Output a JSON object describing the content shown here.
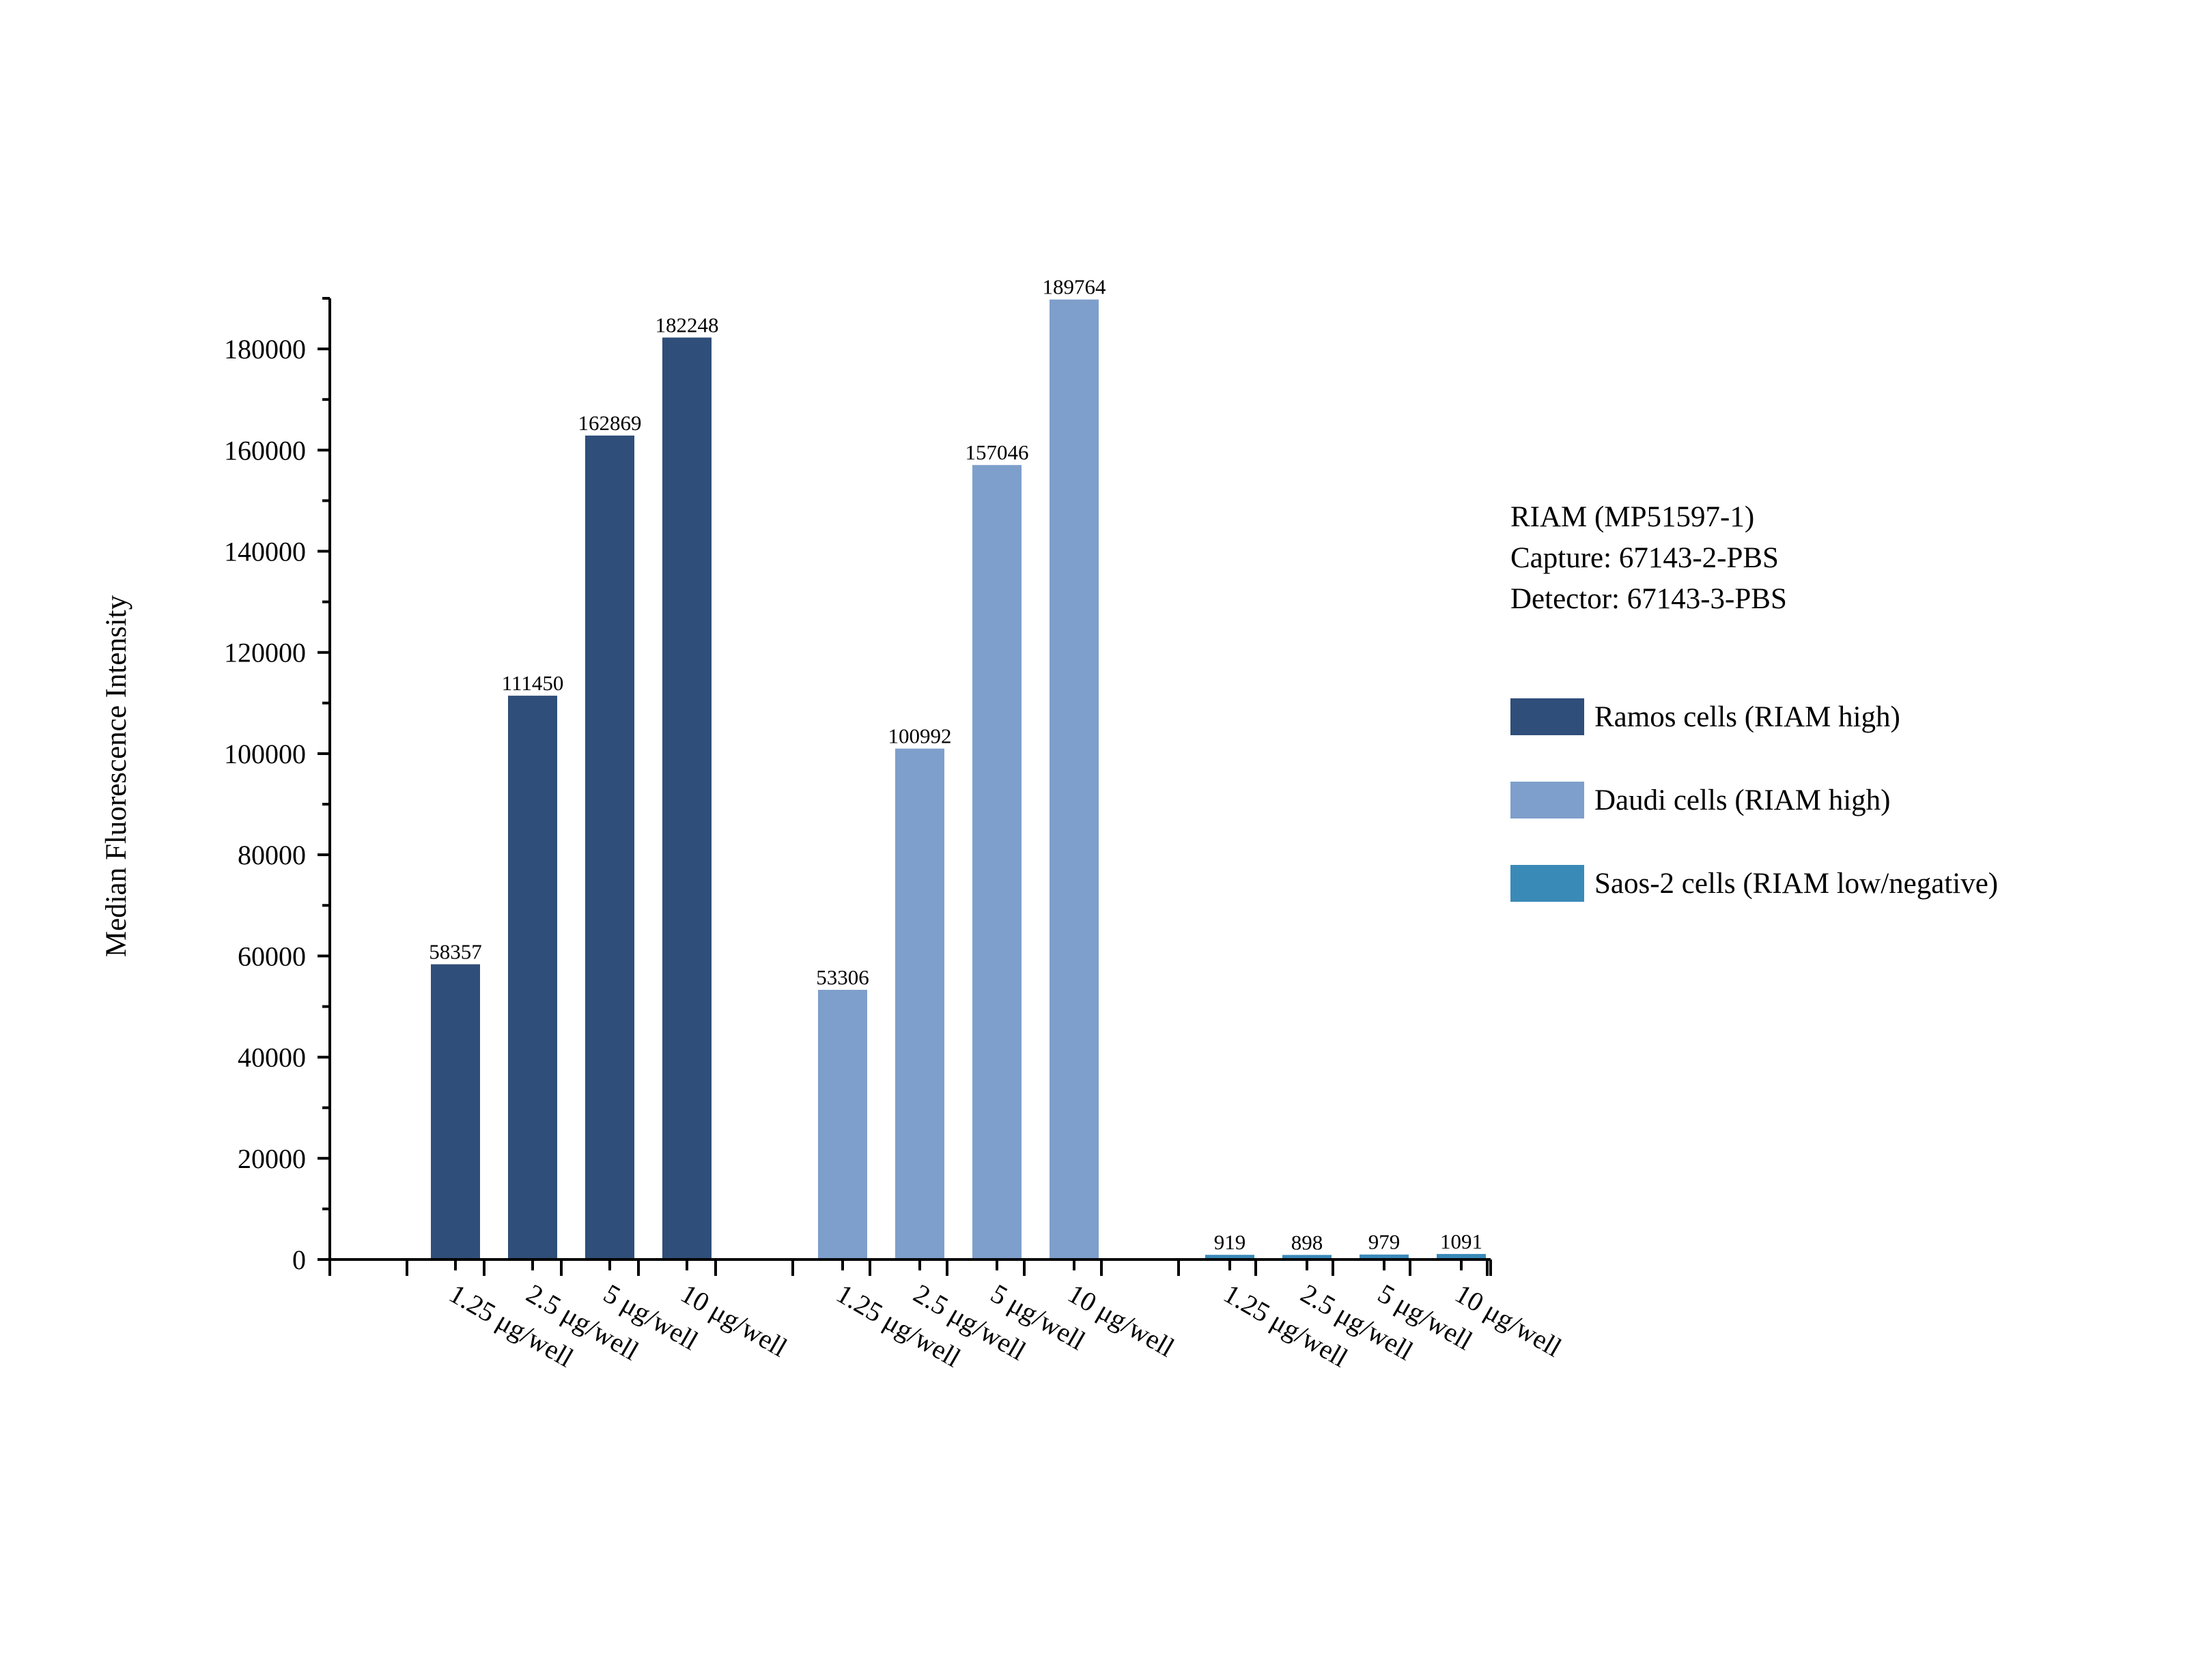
{
  "chart_data": {
    "type": "bar",
    "ylabel": "Median Fluorescence Intensity",
    "xlabel": "",
    "ylim": [
      0,
      190000
    ],
    "yticks": [
      0,
      20000,
      40000,
      60000,
      80000,
      100000,
      120000,
      140000,
      160000,
      180000
    ],
    "categories": [
      "1.25 μg/well",
      "2.5 μg/well",
      "5 μg/well",
      "10 μg/well"
    ],
    "series": [
      {
        "name": "Ramos cells (RIAM high)",
        "color": "#2f4e79",
        "values": [
          58357,
          111450,
          162869,
          182248
        ]
      },
      {
        "name": "Daudi cells (RIAM high)",
        "color": "#7e9fcb",
        "values": [
          53306,
          100992,
          157046,
          189764
        ]
      },
      {
        "name": "Saos-2 cells (RIAM low/negative)",
        "color": "#3a8ab8",
        "values": [
          919,
          898,
          979,
          1091
        ]
      }
    ],
    "legend": {
      "position": "right",
      "title_lines": [
        "RIAM (MP51597-1)",
        "Capture: 67143-2-PBS",
        "Detector: 67143-3-PBS"
      ]
    }
  }
}
